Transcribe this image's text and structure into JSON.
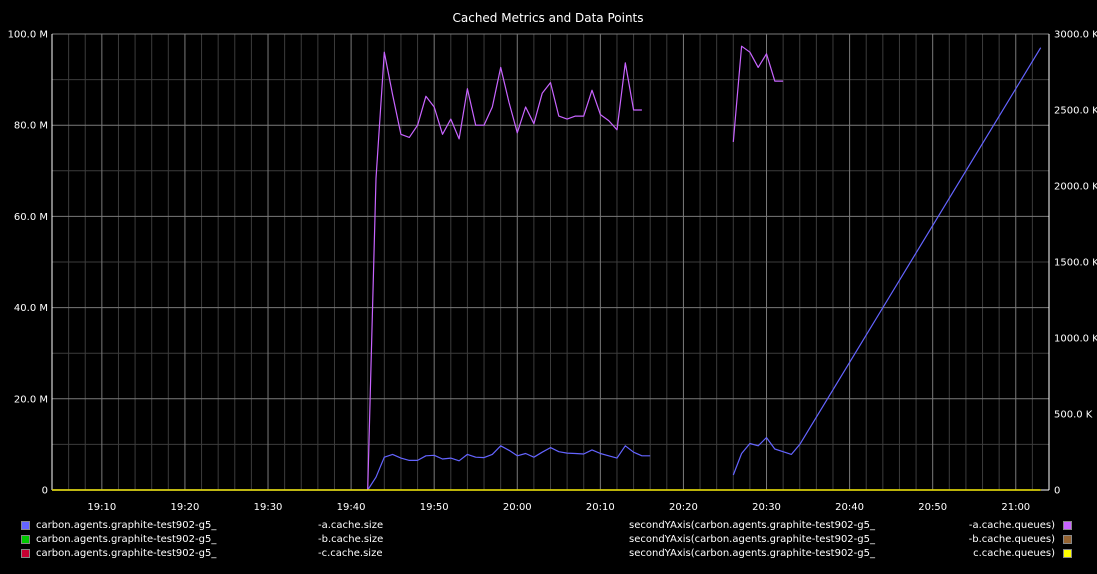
{
  "chart_data": {
    "type": "line",
    "title": "Cached Metrics and Data Points",
    "x_ticks": [
      "19:10",
      "19:20",
      "19:30",
      "19:40",
      "19:50",
      "20:00",
      "20:10",
      "20:20",
      "20:30",
      "20:40",
      "20:50",
      "21:00"
    ],
    "xlim": [
      "19:04",
      "21:04"
    ],
    "y_left": {
      "ticks": [
        "0",
        "20.0 M",
        "40.0 M",
        "60.0 M",
        "80.0 M",
        "100.0 M"
      ],
      "ylim": [
        0,
        100000000
      ]
    },
    "y_right": {
      "ticks": [
        "0",
        "500.0 K",
        "1000.0 K",
        "1500.0 K",
        "2000.0 K",
        "2500.0 K",
        "3000.0 K"
      ],
      "ylim": [
        0,
        3000000
      ]
    },
    "grid": true,
    "legend_position": "bottom",
    "series": [
      {
        "name": "carbon.agents.graphite-test902-g5_-a.cache.size",
        "axis": "left",
        "color": "#6464ff",
        "segments": [
          [
            [
              "19:04",
              0
            ],
            [
              "19:42",
              0
            ],
            [
              "19:43",
              2800000
            ],
            [
              "19:44",
              7200000
            ],
            [
              "19:45",
              7800000
            ],
            [
              "19:46",
              7000000
            ],
            [
              "19:47",
              6500000
            ],
            [
              "19:48",
              6500000
            ],
            [
              "19:49",
              7500000
            ],
            [
              "19:50",
              7600000
            ],
            [
              "19:51",
              6800000
            ],
            [
              "19:52",
              7000000
            ],
            [
              "19:53",
              6400000
            ],
            [
              "19:54",
              7800000
            ],
            [
              "19:55",
              7200000
            ],
            [
              "19:56",
              7100000
            ],
            [
              "19:57",
              7800000
            ],
            [
              "19:58",
              9700000
            ],
            [
              "19:59",
              8700000
            ],
            [
              "20:00",
              7500000
            ],
            [
              "20:01",
              8000000
            ],
            [
              "20:02",
              7200000
            ],
            [
              "20:03",
              8300000
            ],
            [
              "20:04",
              9300000
            ],
            [
              "20:05",
              8400000
            ],
            [
              "20:06",
              8100000
            ],
            [
              "20:07",
              8000000
            ],
            [
              "20:08",
              7900000
            ],
            [
              "20:09",
              8800000
            ],
            [
              "20:10",
              8000000
            ],
            [
              "20:11",
              7500000
            ],
            [
              "20:12",
              7000000
            ],
            [
              "20:13",
              9700000
            ],
            [
              "20:14",
              8300000
            ],
            [
              "20:15",
              7500000
            ],
            [
              "20:16",
              7500000
            ]
          ],
          [
            [
              "20:26",
              3300000
            ],
            [
              "20:27",
              8000000
            ],
            [
              "20:28",
              10200000
            ],
            [
              "20:29",
              9700000
            ],
            [
              "20:30",
              11500000
            ],
            [
              "20:31",
              9000000
            ],
            [
              "20:32",
              8400000
            ],
            [
              "20:33",
              7800000
            ],
            [
              "20:34",
              10000000
            ],
            [
              "21:03",
              97000000
            ]
          ]
        ]
      },
      {
        "name": "carbon.agents.graphite-test902-g5_-b.cache.size",
        "axis": "left",
        "color": "#00c800",
        "segments": [
          [
            [
              "19:04",
              0
            ],
            [
              "21:03",
              0
            ]
          ]
        ]
      },
      {
        "name": "carbon.agents.graphite-test902-g5_-c.cache.size",
        "axis": "left",
        "color": "#c80032",
        "segments": [
          [
            [
              "19:04",
              0
            ],
            [
              "21:03",
              0
            ]
          ]
        ]
      },
      {
        "name": "secondYAxis(carbon.agents.graphite-test902-g5_-a.cache.queues)",
        "axis": "right",
        "color": "#c864ff",
        "segments": [
          [
            [
              "19:42",
              0
            ],
            [
              "19:43",
              2050000
            ],
            [
              "19:44",
              2880000
            ],
            [
              "19:45",
              2600000
            ],
            [
              "19:46",
              2340000
            ],
            [
              "19:47",
              2320000
            ],
            [
              "19:48",
              2400000
            ],
            [
              "19:49",
              2590000
            ],
            [
              "19:50",
              2520000
            ],
            [
              "19:51",
              2340000
            ],
            [
              "19:52",
              2440000
            ],
            [
              "19:53",
              2310000
            ],
            [
              "19:54",
              2640000
            ],
            [
              "19:55",
              2400000
            ],
            [
              "19:56",
              2400000
            ],
            [
              "19:57",
              2520000
            ],
            [
              "19:58",
              2780000
            ],
            [
              "19:59",
              2550000
            ],
            [
              "20:00",
              2350000
            ],
            [
              "20:01",
              2520000
            ],
            [
              "20:02",
              2410000
            ],
            [
              "20:03",
              2610000
            ],
            [
              "20:04",
              2680000
            ],
            [
              "20:05",
              2460000
            ],
            [
              "20:06",
              2440000
            ],
            [
              "20:07",
              2460000
            ],
            [
              "20:08",
              2460000
            ],
            [
              "20:09",
              2630000
            ],
            [
              "20:10",
              2470000
            ],
            [
              "20:11",
              2430000
            ],
            [
              "20:12",
              2370000
            ],
            [
              "20:13",
              2810000
            ],
            [
              "20:14",
              2500000
            ],
            [
              "20:15",
              2500000
            ]
          ],
          [
            [
              "20:26",
              2290000
            ],
            [
              "20:27",
              2920000
            ],
            [
              "20:28",
              2880000
            ],
            [
              "20:29",
              2780000
            ],
            [
              "20:30",
              2870000
            ],
            [
              "20:31",
              2690000
            ],
            [
              "20:32",
              2690000
            ]
          ]
        ]
      },
      {
        "name": "secondYAxis(carbon.agents.graphite-test902-g5_-b.cache.queues)",
        "axis": "right",
        "color": "#966432",
        "segments": [
          [
            [
              "19:04",
              0
            ],
            [
              "21:03",
              0
            ]
          ]
        ]
      },
      {
        "name": "secondYAxis(carbon.agents.graphite-test902-g5_-c.cache.queues)",
        "axis": "right",
        "color": "#ffff00",
        "segments": [
          [
            [
              "19:04",
              0
            ],
            [
              "21:03",
              0
            ]
          ]
        ]
      }
    ]
  },
  "legend": [
    {
      "color": "#6464ff",
      "left": "carbon.agents.graphite-test902-g5_",
      "right": "-a.cache.size",
      "side": "left"
    },
    {
      "color": "#00c800",
      "left": "carbon.agents.graphite-test902-g5_",
      "right": "-b.cache.size",
      "side": "left"
    },
    {
      "color": "#c80032",
      "left": "carbon.agents.graphite-test902-g5_",
      "right": "-c.cache.size",
      "side": "left"
    },
    {
      "color": "#c864ff",
      "left": "secondYAxis(carbon.agents.graphite-test902-g5_",
      "right": "-a.cache.queues)",
      "side": "right"
    },
    {
      "color": "#966432",
      "left": "secondYAxis(carbon.agents.graphite-test902-g5_",
      "right": "-b.cache.queues)",
      "side": "right"
    },
    {
      "color": "#ffff00",
      "left": "secondYAxis(carbon.agents.graphite-test902-g5_",
      "right": "c.cache.queues)",
      "side": "right"
    }
  ]
}
